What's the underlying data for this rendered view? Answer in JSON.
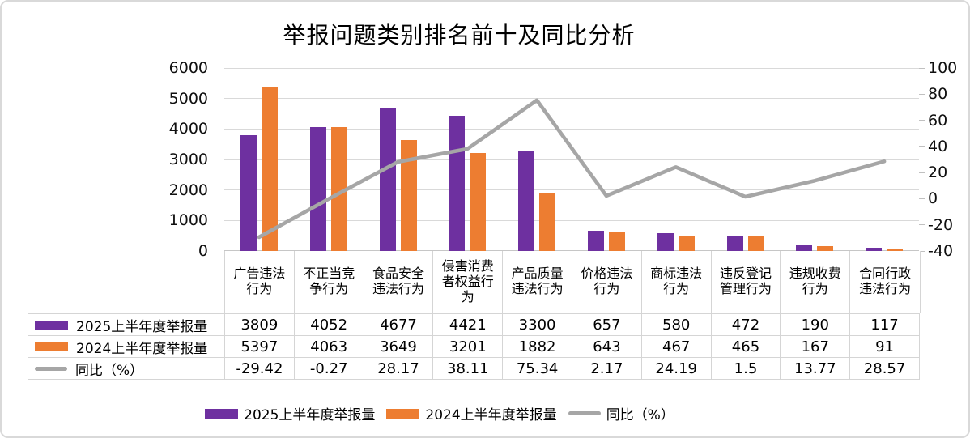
{
  "chart_data": {
    "type": "combo",
    "title": "举报问题类别排名前十及同比分析",
    "categories": [
      "广告违法行为",
      "不正当竞争行为",
      "食品安全违法行为",
      "侵害消费者权益行为",
      "产品质量违法行为",
      "价格违法行为",
      "商标违法行为",
      "违反登记管理行为",
      "违规收费行为",
      "合同行政违法行为"
    ],
    "series": [
      {
        "name": "2025上半年度举报量",
        "type": "bar",
        "axis": "left",
        "color": "#6E30A0",
        "values": [
          3809,
          4052,
          4677,
          4421,
          3300,
          657,
          580,
          472,
          190,
          117
        ]
      },
      {
        "name": "2024上半年度举报量",
        "type": "bar",
        "axis": "left",
        "color": "#ED7D31",
        "values": [
          5397,
          4063,
          3649,
          3201,
          1882,
          643,
          467,
          465,
          167,
          91
        ]
      },
      {
        "name": "同比（%）",
        "type": "line",
        "axis": "right",
        "color": "#A6A6A6",
        "values": [
          -29.42,
          -0.27,
          28.17,
          38.11,
          75.34,
          2.17,
          24.19,
          1.5,
          13.77,
          28.57
        ]
      }
    ],
    "left_axis": {
      "min": 0,
      "max": 6000,
      "step": 1000,
      "ticks": [
        "0",
        "1000",
        "2000",
        "3000",
        "4000",
        "5000",
        "6000"
      ]
    },
    "right_axis": {
      "min": -40,
      "max": 100,
      "step": 20,
      "ticks": [
        "-40",
        "-20",
        "0",
        "20",
        "40",
        "60",
        "80",
        "100"
      ]
    },
    "grid": true,
    "legend_position": "bottom",
    "data_table_visible": true,
    "grid_color": "#D9D9D9",
    "border_color": "#D5D5D5"
  }
}
